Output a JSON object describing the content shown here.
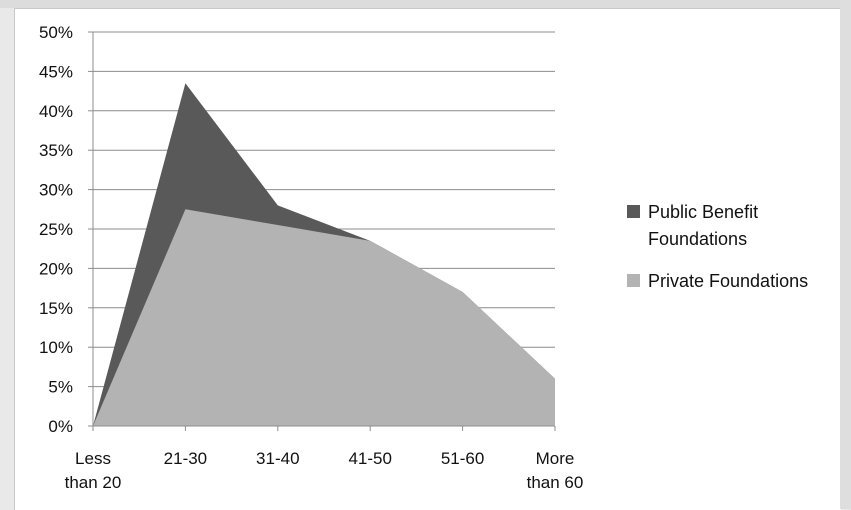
{
  "chart_data": {
    "type": "area",
    "categories": [
      "Less than 20",
      "21-30",
      "31-40",
      "41-50",
      "51-60",
      "More than 60"
    ],
    "category_lines": [
      [
        "Less",
        "than 20"
      ],
      [
        "21-30"
      ],
      [
        "31-40"
      ],
      [
        "41-50"
      ],
      [
        "51-60"
      ],
      [
        "More",
        "than 60"
      ]
    ],
    "ylim": [
      0,
      50
    ],
    "y_ticks": [
      0,
      5,
      10,
      15,
      20,
      25,
      30,
      35,
      40,
      45,
      50
    ],
    "y_tick_labels": [
      "0%",
      "5%",
      "10%",
      "15%",
      "20%",
      "25%",
      "30%",
      "35%",
      "40%",
      "45%",
      "50%"
    ],
    "grid": true,
    "legend_position": "right",
    "series": [
      {
        "name": "Public Benefit Foundations",
        "legend_lines": [
          "Public Benefit",
          "Foundations"
        ],
        "color": "#595959",
        "values": [
          0,
          43.5,
          28,
          23.5,
          17,
          6
        ]
      },
      {
        "name": "Private Foundations",
        "legend_lines": [
          "Private Foundations"
        ],
        "color": "#b3b3b3",
        "values": [
          0,
          27.5,
          25.5,
          23.5,
          17,
          6
        ]
      }
    ]
  }
}
